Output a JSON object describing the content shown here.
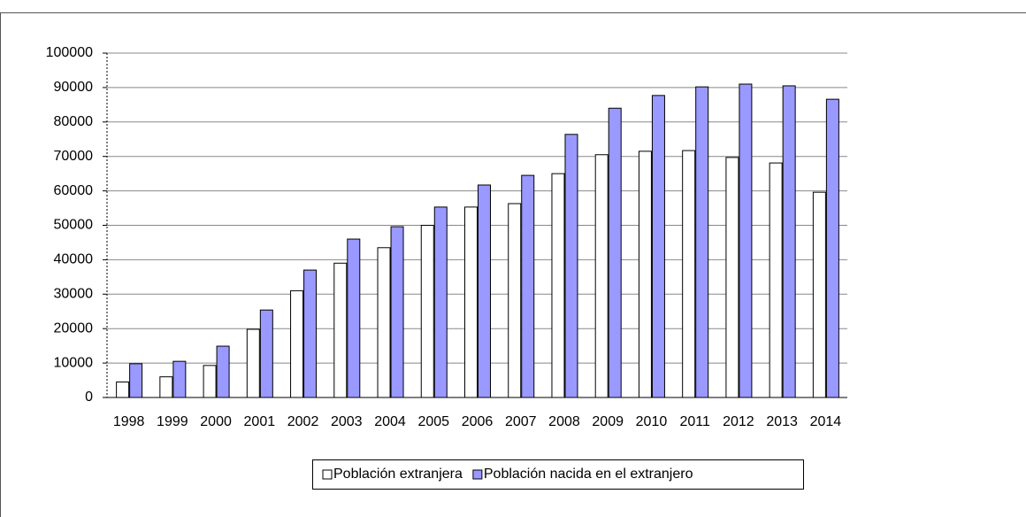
{
  "chart_data": {
    "type": "bar",
    "categories": [
      "1998",
      "1999",
      "2000",
      "2001",
      "2002",
      "2003",
      "2004",
      "2005",
      "2006",
      "2007",
      "2008",
      "2009",
      "2010",
      "2011",
      "2012",
      "2013",
      "2014"
    ],
    "series": [
      {
        "name": "Población extranjera",
        "color": "#ffffff",
        "values": [
          4500,
          6000,
          9300,
          19800,
          31000,
          39000,
          43500,
          50000,
          55300,
          56300,
          65000,
          70500,
          71500,
          71700,
          69700,
          68100,
          59600
        ]
      },
      {
        "name": "Población nacida en el extranjero",
        "color": "#9999ff",
        "values": [
          9800,
          10500,
          14900,
          25400,
          37000,
          46000,
          49600,
          55300,
          61700,
          64500,
          76400,
          84000,
          87700,
          90200,
          91000,
          90500,
          86600
        ]
      }
    ],
    "ylim": [
      0,
      100000
    ],
    "yticks": [
      0,
      10000,
      20000,
      30000,
      40000,
      50000,
      60000,
      70000,
      80000,
      90000,
      100000
    ],
    "grid": true,
    "legend": "bottom"
  }
}
